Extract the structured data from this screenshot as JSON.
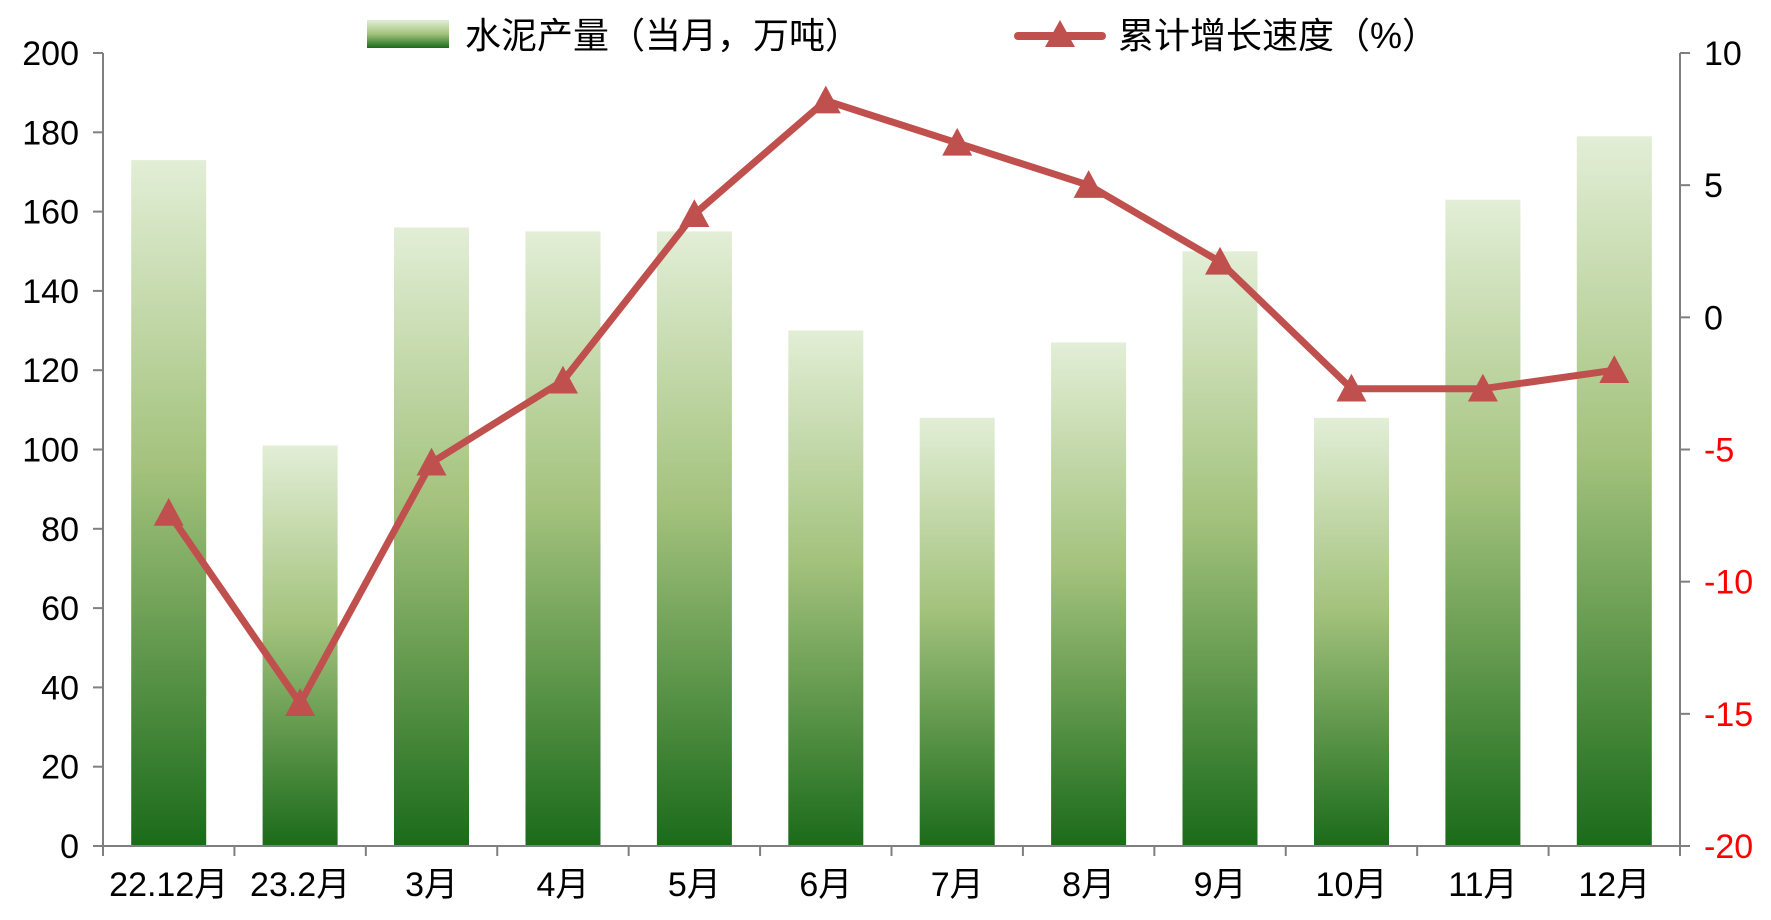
{
  "chart_data": {
    "type": "bar",
    "categories": [
      "22.12月",
      "23.2月",
      "3月",
      "4月",
      "5月",
      "6月",
      "7月",
      "8月",
      "9月",
      "10月",
      "11月",
      "12月"
    ],
    "series": [
      {
        "name": "水泥产量（当月，万吨）",
        "type": "bar",
        "axis": "left",
        "values": [
          173,
          101,
          156,
          155,
          155,
          130,
          108,
          127,
          150,
          108,
          163,
          179
        ]
      },
      {
        "name": "累计增长速度（%）",
        "type": "line",
        "axis": "right",
        "marker": "triangle",
        "values": [
          -7.4,
          -14.6,
          -5.5,
          -2.4,
          3.9,
          8.2,
          6.6,
          5.0,
          2.1,
          -2.7,
          -2.7,
          -2.0
        ]
      }
    ],
    "left_axis": {
      "ylim": [
        0,
        200
      ],
      "ticks": [
        0,
        20,
        40,
        60,
        80,
        100,
        120,
        140,
        160,
        180,
        200
      ],
      "tick_labels": [
        "0",
        "20",
        "40",
        "60",
        "80",
        "100",
        "120",
        "140",
        "160",
        "180",
        "200"
      ]
    },
    "right_axis": {
      "ylim": [
        -20,
        10
      ],
      "ticks": [
        -20,
        -15,
        -10,
        -5,
        0,
        5,
        10
      ],
      "tick_labels": [
        "-20",
        "-15",
        "-10",
        "-5",
        "0",
        "5",
        "10"
      ],
      "negative_label_color": "#ff0000",
      "positive_label_color": "#000000"
    },
    "legend_position": "top",
    "grid": false,
    "colors": {
      "bar_top": "#e2eed6",
      "bar_mid": "#a3c27c",
      "bar_bottom": "#1a6b1a",
      "line": "#c0504d",
      "axis": "#7f7f7f"
    }
  }
}
